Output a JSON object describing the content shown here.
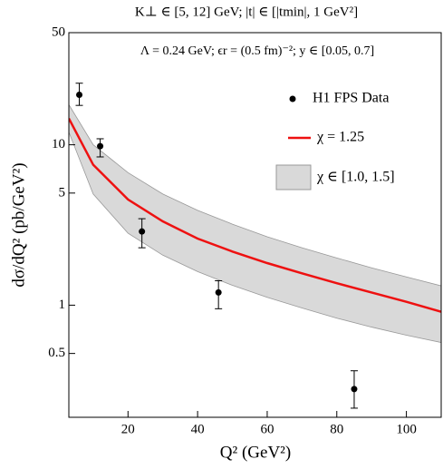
{
  "chart_data": {
    "type": "log-band-line-errorbar",
    "title": "K⊥ ∈ [5, 12] GeV;  |t| ∈ [|tmin|, 1 GeV²]",
    "annotation": "Λ = 0.24 GeV;  ϵr = (0.5 fm)⁻²;  y ∈ [0.05, 0.7]",
    "x_label": "Q² (GeV²)",
    "y_label": "dσ/dQ² (pb/GeV²)",
    "xlim": [
      3,
      110
    ],
    "ylim": [
      0.2,
      50
    ],
    "y_log": true,
    "xticks": [
      20,
      40,
      60,
      80,
      100
    ],
    "yticks": [
      0.5,
      1,
      5,
      10,
      50
    ],
    "data_points": {
      "name": "H1 FPS Data",
      "color": "#000000",
      "x": [
        6,
        12,
        24,
        46,
        85
      ],
      "values": [
        20.5,
        9.8,
        2.88,
        1.2,
        0.3
      ],
      "lower": [
        17.6,
        8.4,
        2.28,
        0.95,
        0.228
      ],
      "upper": [
        24.2,
        10.9,
        3.46,
        1.42,
        0.39
      ]
    },
    "curve": {
      "name": "χ = 1.25",
      "color": "#ee1111",
      "x": [
        3,
        10,
        20,
        30,
        40,
        50,
        60,
        70,
        80,
        90,
        100,
        110
      ],
      "values": [
        14.6,
        7.5,
        4.56,
        3.33,
        2.6,
        2.16,
        1.83,
        1.58,
        1.37,
        1.2,
        1.05,
        0.91
      ]
    },
    "band": {
      "name": "χ ∈ [1.0, 1.5]",
      "color": "#d9d9d9",
      "x": [
        3,
        10,
        20,
        30,
        40,
        50,
        60,
        70,
        80,
        90,
        100,
        110
      ],
      "upper": [
        17.8,
        10,
        6.7,
        4.93,
        3.9,
        3.2,
        2.67,
        2.28,
        1.97,
        1.71,
        1.5,
        1.32
      ],
      "lower": [
        12,
        4.93,
        2.81,
        2.05,
        1.62,
        1.33,
        1.12,
        0.96,
        0.83,
        0.73,
        0.65,
        0.585
      ]
    }
  }
}
